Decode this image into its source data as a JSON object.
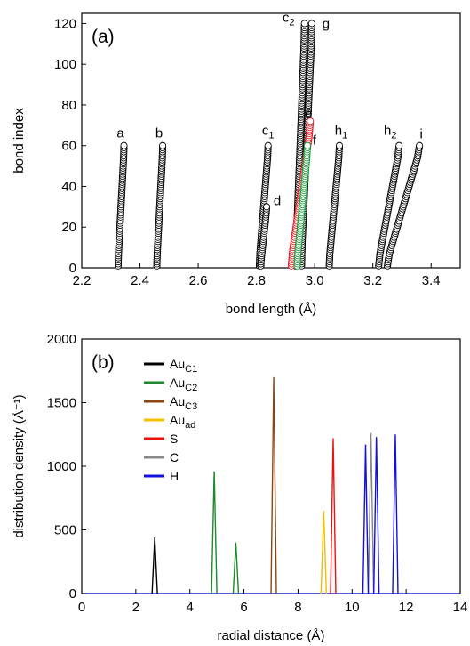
{
  "chart_data": [
    {
      "panel_label": "(a)",
      "type": "scatter",
      "xlabel": "bond length (Å)",
      "ylabel": "bond index",
      "xlim": [
        2.2,
        3.5
      ],
      "ylim": [
        0,
        125
      ],
      "xticks": [
        "2.2",
        "2.4",
        "2.6",
        "2.8",
        "3.0",
        "3.2",
        "3.4"
      ],
      "yticks": [
        "0",
        "20",
        "40",
        "60",
        "80",
        "100",
        "120"
      ],
      "marker": "open-circle",
      "series": [
        {
          "label": "a",
          "sub": "",
          "color": "#000000",
          "n": 60,
          "x_start": 2.325,
          "x_end": 2.345
        },
        {
          "label": "b",
          "sub": "",
          "color": "#000000",
          "n": 60,
          "x_start": 2.458,
          "x_end": 2.478
        },
        {
          "label": "c",
          "sub": "1",
          "color": "#000000",
          "n": 60,
          "x_start": 2.81,
          "x_end": 2.84
        },
        {
          "label": "d",
          "sub": "",
          "color": "#000000",
          "n": 30,
          "x_start": 2.815,
          "x_end": 2.835
        },
        {
          "label": "c",
          "sub": "2",
          "color": "#000000",
          "n": 120,
          "x_start": 2.935,
          "x_end": 2.965
        },
        {
          "label": "e",
          "sub": "",
          "color": "#e8141c",
          "n": 72,
          "x_start": 2.92,
          "x_end": 2.985
        },
        {
          "label": "f",
          "sub": "",
          "color": "#1a9a3a",
          "n": 60,
          "x_start": 2.94,
          "x_end": 2.975
        },
        {
          "label": "g",
          "sub": "",
          "color": "#000000",
          "n": 120,
          "x_start": 2.955,
          "x_end": 2.99
        },
        {
          "label": "h",
          "sub": "1",
          "color": "#000000",
          "n": 60,
          "x_start": 3.05,
          "x_end": 3.085
        },
        {
          "label": "h",
          "sub": "2",
          "color": "#000000",
          "n": 60,
          "x_start": 3.22,
          "x_end": 3.29
        },
        {
          "label": "i",
          "sub": "",
          "color": "#000000",
          "n": 60,
          "x_start": 3.25,
          "x_end": 3.36
        }
      ]
    },
    {
      "panel_label": "(b)",
      "type": "line",
      "xlabel": "radial distance (Å)",
      "ylabel": "distribution density (Å⁻¹)",
      "xlim": [
        0,
        14
      ],
      "ylim": [
        0,
        2000
      ],
      "xticks": [
        "0",
        "2",
        "4",
        "6",
        "8",
        "10",
        "12",
        "14"
      ],
      "yticks": [
        "0",
        "500",
        "1000",
        "1500",
        "2000"
      ],
      "legend_position": "upper-left",
      "series": [
        {
          "name": "Au",
          "sub": "C1",
          "color": "#000000",
          "peaks": [
            {
              "x": 2.7,
              "y": 440
            }
          ]
        },
        {
          "name": "Au",
          "sub": "C2",
          "color": "#1a8a2a",
          "peaks": [
            {
              "x": 4.9,
              "y": 960
            },
            {
              "x": 5.7,
              "y": 400
            }
          ]
        },
        {
          "name": "Au",
          "sub": "C3",
          "color": "#8b4513",
          "peaks": [
            {
              "x": 7.1,
              "y": 1700
            }
          ]
        },
        {
          "name": "Au",
          "sub": "ad",
          "color": "#f0c000",
          "peaks": [
            {
              "x": 8.95,
              "y": 650
            }
          ]
        },
        {
          "name": "S",
          "sub": "",
          "color": "#ee1111",
          "peaks": [
            {
              "x": 9.3,
              "y": 1220
            }
          ]
        },
        {
          "name": "C",
          "sub": "",
          "color": "#888888",
          "peaks": [
            {
              "x": 10.7,
              "y": 1260
            }
          ]
        },
        {
          "name": "H",
          "sub": "",
          "color": "#1111dd",
          "peaks": [
            {
              "x": 10.5,
              "y": 1170
            },
            {
              "x": 10.9,
              "y": 1230
            },
            {
              "x": 11.6,
              "y": 1250
            }
          ]
        }
      ]
    }
  ]
}
